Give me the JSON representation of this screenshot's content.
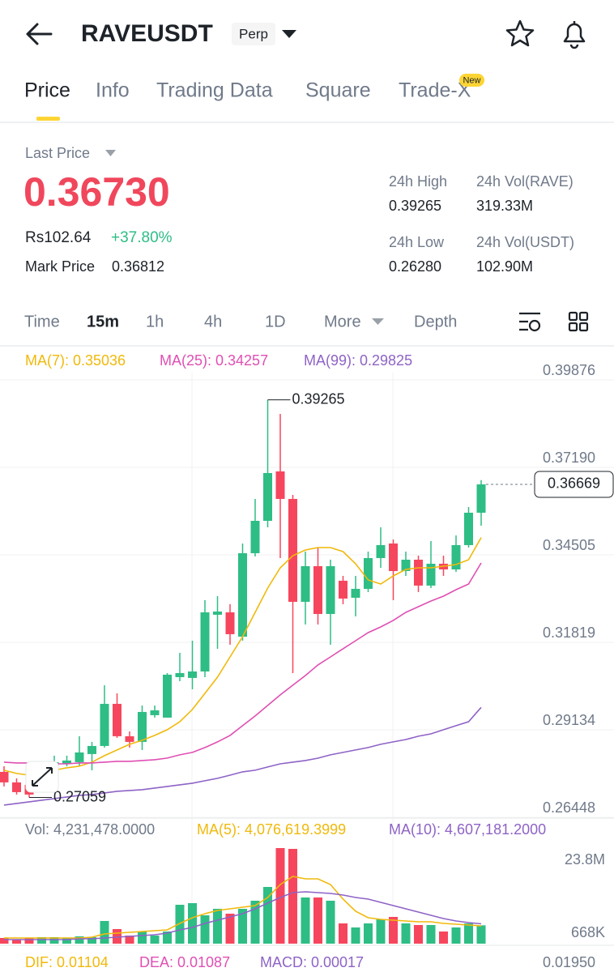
{
  "header": {
    "title": "RAVEUSDT",
    "badge": "Perp"
  },
  "tabs": [
    "Price",
    "Info",
    "Trading Data",
    "Square",
    "Trade-X"
  ],
  "tab_badge": "New",
  "price": {
    "label": "Last Price",
    "last": "0.36730",
    "fiat": "Rs102.64",
    "change": "+37.80%",
    "mark_label": "Mark Price",
    "mark": "0.36812"
  },
  "stats": [
    {
      "label": "24h High",
      "value": "0.39265"
    },
    {
      "label": "24h Vol(RAVE)",
      "value": "319.33M"
    },
    {
      "label": "24h Low",
      "value": "0.26280"
    },
    {
      "label": "24h Vol(USDT)",
      "value": "102.90M"
    }
  ],
  "intervals": [
    "Time",
    "15m",
    "1h",
    "4h",
    "1D",
    "More",
    "Depth"
  ],
  "macd": {
    "labels": [
      "DIF: 0.01104",
      "DEA: 0.01087",
      "MACD: 0.00017"
    ],
    "ytick": "0.01950"
  },
  "chart_data": [
    {
      "type": "candlestick",
      "up_color": "#2ebd85",
      "down_color": "#f6465d",
      "ylim": [
        0.26425,
        0.401
      ],
      "yticks": [
        0.39876,
        {
          "value": 0.3719,
          "label": "0.37190"
        },
        0.34505,
        0.31819,
        0.29134,
        0.26448
      ],
      "grid": true,
      "high_label": "0.39265",
      "low_label": "0.27059",
      "last_label": "0.36669",
      "ohlc": [
        [
          0.27844,
          0.28018,
          0.27396,
          0.27521
        ],
        [
          0.27521,
          0.27645,
          0.27148,
          0.27222
        ],
        [
          0.27446,
          0.27645,
          0.27059,
          0.27148
        ],
        [
          0.27396,
          0.27893,
          0.27222,
          0.27769
        ],
        [
          0.27893,
          0.28341,
          0.27769,
          0.28142
        ],
        [
          0.28092,
          0.28341,
          0.28018,
          0.28192
        ],
        [
          0.28142,
          0.28938,
          0.28018,
          0.2844
        ],
        [
          0.28391,
          0.28764,
          0.27893,
          0.28639
        ],
        [
          0.28639,
          0.30504,
          0.2859,
          0.29932
        ],
        [
          0.29932,
          0.30255,
          0.28888,
          0.28938
        ],
        [
          0.28938,
          0.29087,
          0.2859,
          0.28764
        ],
        [
          0.28764,
          0.29882,
          0.28515,
          0.29683
        ],
        [
          0.29584,
          0.29882,
          0.29509,
          0.29733
        ],
        [
          0.29509,
          0.30877,
          0.29509,
          0.30827
        ],
        [
          0.30752,
          0.31498,
          0.30628,
          0.30877
        ],
        [
          0.30728,
          0.31871,
          0.30379,
          0.30926
        ],
        [
          0.30926,
          0.33114,
          0.30752,
          0.32741
        ],
        [
          0.32667,
          0.33238,
          0.31622,
          0.32766
        ],
        [
          0.32741,
          0.3299,
          0.31747,
          0.3207
        ],
        [
          0.31995,
          0.34854,
          0.31871,
          0.34556
        ],
        [
          0.34556,
          0.36222,
          0.34457,
          0.3555
        ],
        [
          0.3555,
          0.39265,
          0.35351,
          0.37017
        ],
        [
          0.37067,
          0.38832,
          0.34407,
          0.36222
        ],
        [
          0.36222,
          0.36346,
          0.30877,
          0.33064
        ],
        [
          0.33064,
          0.34606,
          0.32368,
          0.34158
        ],
        [
          0.34158,
          0.3473,
          0.32368,
          0.32691
        ],
        [
          0.32691,
          0.34357,
          0.31747,
          0.34158
        ],
        [
          0.33711,
          0.3386,
          0.3299,
          0.33164
        ],
        [
          0.33189,
          0.3386,
          0.32617,
          0.33462
        ],
        [
          0.33462,
          0.34606,
          0.33363,
          0.34407
        ],
        [
          0.34407,
          0.35351,
          0.34108,
          0.34805
        ],
        [
          0.34854,
          0.34979,
          0.33114,
          0.34009
        ],
        [
          0.34009,
          0.34606,
          0.3386,
          0.34357
        ],
        [
          0.34357,
          0.34481,
          0.33363,
          0.33562
        ],
        [
          0.33562,
          0.34929,
          0.33487,
          0.34233
        ],
        [
          0.34233,
          0.34481,
          0.3386,
          0.34059
        ],
        [
          0.34059,
          0.35103,
          0.33984,
          0.34805
        ],
        [
          0.34805,
          0.35973,
          0.3473,
          0.35799
        ],
        [
          0.35799,
          0.368,
          0.35401,
          0.36669
        ]
      ],
      "series": [
        {
          "name": "MA(7): 0.35036",
          "color": "#f0b90b",
          "values": [
            0.27894,
            0.27794,
            0.27744,
            0.27794,
            0.27894,
            0.27968,
            0.28018,
            0.28142,
            0.28341,
            0.28515,
            0.28689,
            0.28813,
            0.28963,
            0.29137,
            0.29385,
            0.29758,
            0.30255,
            0.30752,
            0.31374,
            0.31995,
            0.32741,
            0.33487,
            0.34109,
            0.34481,
            0.34656,
            0.3473,
            0.3473,
            0.34606,
            0.34233,
            0.33736,
            0.33611,
            0.3386,
            0.34059,
            0.34109,
            0.34109,
            0.34158,
            0.34208,
            0.34357,
            0.35036
          ]
        },
        {
          "name": "MA(25): 0.34257",
          "color": "#e04fb3",
          "values": [
            0.28142,
            0.28117,
            0.28117,
            0.28092,
            0.28092,
            0.28092,
            0.28117,
            0.28117,
            0.28142,
            0.28167,
            0.28167,
            0.28192,
            0.28217,
            0.28267,
            0.28366,
            0.28441,
            0.2859,
            0.28764,
            0.28963,
            0.29261,
            0.2956,
            0.29883,
            0.30206,
            0.30504,
            0.30802,
            0.31126,
            0.31374,
            0.31623,
            0.31871,
            0.3212,
            0.32294,
            0.32493,
            0.32741,
            0.32915,
            0.33089,
            0.33238,
            0.33437,
            0.33611,
            0.34257
          ]
        },
        {
          "name": "MA(99): 0.29825",
          "color": "#8e63c6",
          "values": [
            0.26825,
            0.26874,
            0.26924,
            0.26974,
            0.27023,
            0.27073,
            0.27123,
            0.27148,
            0.27198,
            0.27247,
            0.27272,
            0.27297,
            0.27347,
            0.27396,
            0.27446,
            0.27496,
            0.2757,
            0.27645,
            0.27744,
            0.27844,
            0.27894,
            0.27993,
            0.28092,
            0.28142,
            0.28192,
            0.28266,
            0.28366,
            0.28441,
            0.28515,
            0.2859,
            0.28689,
            0.28764,
            0.28838,
            0.28938,
            0.29012,
            0.29137,
            0.29261,
            0.29385,
            0.29825
          ]
        }
      ]
    },
    {
      "type": "bar",
      "label": "Vol: 4,231,478.0000",
      "ylim": [
        0,
        23800000
      ],
      "yticks": [
        {
          "value": 23800000,
          "label": "23.8M"
        },
        {
          "value": 668000,
          "label": "668K"
        }
      ],
      "values": [
        1026000,
        668000,
        1026000,
        1231000,
        1231000,
        1026000,
        1436000,
        1231000,
        5334000,
        3283000,
        1641000,
        2667000,
        1641000,
        2667000,
        9438000,
        9848000,
        6771000,
        8412000,
        7181000,
        8412000,
        10464000,
        13952000,
        23800000,
        23595000,
        11284000,
        11284000,
        10464000,
        4719000,
        3693000,
        4719000,
        5745000,
        6360000,
        4719000,
        4309000,
        4309000,
        2667000,
        3693000,
        4719000,
        4231478
      ],
      "series": [
        {
          "name": "MA(5): 4,076,619.3999",
          "color": "#f0b90b",
          "values": [
            1026000,
            1026000,
            1026000,
            1026000,
            1026000,
            1026000,
            1026000,
            1231000,
            2052000,
            2257000,
            2462000,
            2667000,
            2872000,
            3078000,
            4719000,
            6155000,
            7181000,
            8002000,
            8412000,
            8822000,
            9233000,
            11284000,
            14567000,
            16619000,
            16003000,
            16003000,
            14567000,
            10874000,
            7797000,
            6155000,
            5745000,
            5540000,
            5334000,
            5130000,
            5130000,
            4719000,
            4514000,
            4309000,
            4076619.3999
          ]
        },
        {
          "name": "MA(10): 4,607,181.2000",
          "color": "#8e63c6",
          "values": [
            616000,
            616000,
            616000,
            616000,
            616000,
            616000,
            821000,
            821000,
            1026000,
            1231000,
            1436000,
            1641000,
            1847000,
            2257000,
            3078000,
            3693000,
            4719000,
            5540000,
            6360000,
            7181000,
            8412000,
            9848000,
            11284000,
            12515000,
            12721000,
            12515000,
            12310000,
            11900000,
            11284000,
            10874000,
            10053000,
            9233000,
            8412000,
            7591000,
            6771000,
            5950000,
            5334000,
            4924000,
            4607181.2
          ]
        }
      ]
    }
  ]
}
